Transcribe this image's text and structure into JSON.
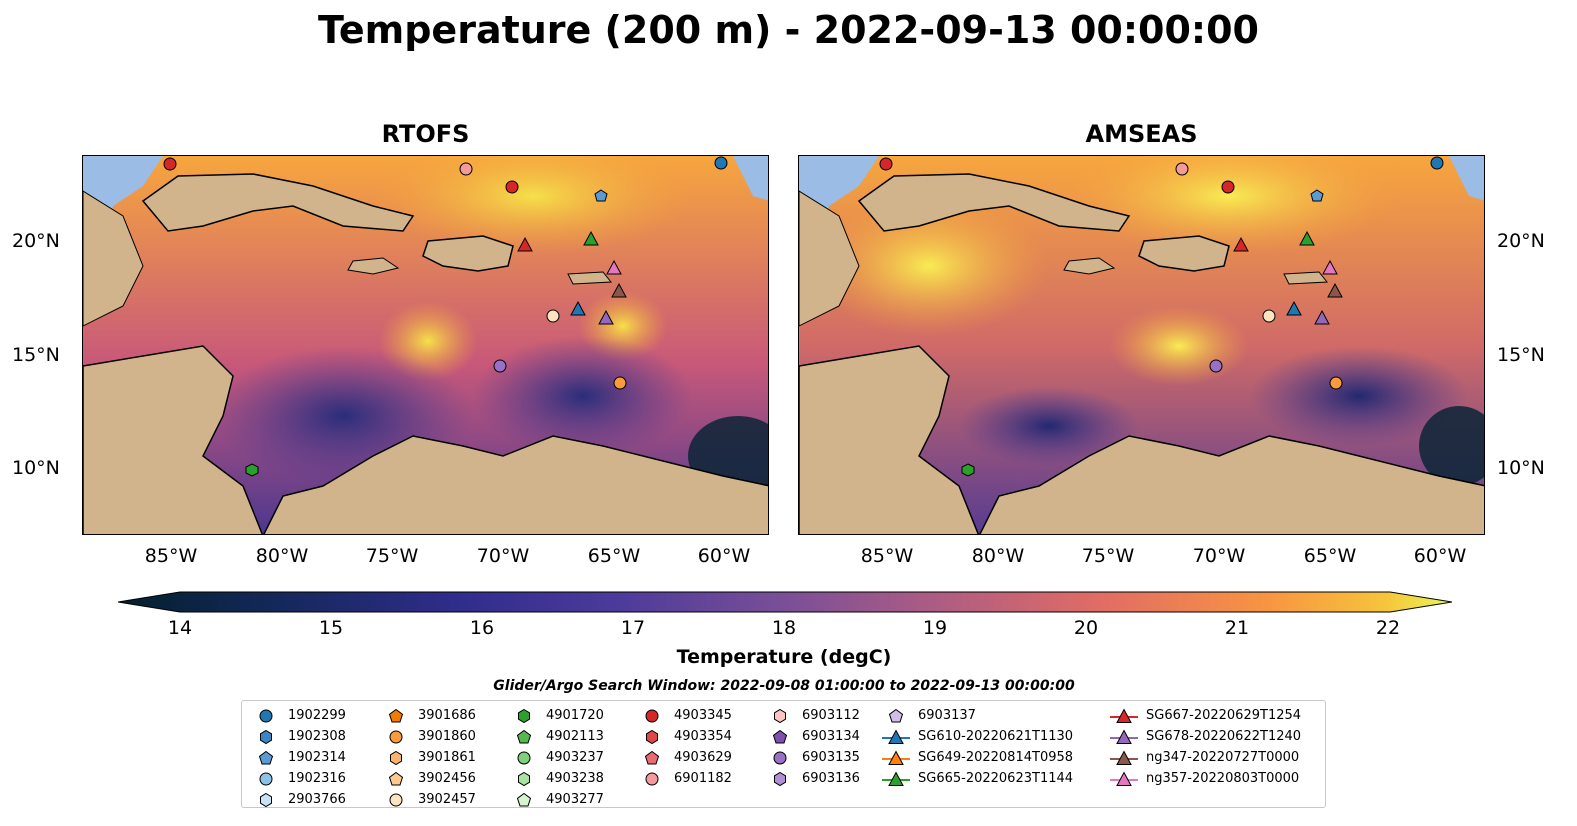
{
  "title": "Temperature (200 m) - 2022-09-13 00:00:00",
  "panels": [
    {
      "title": "RTOFS"
    },
    {
      "title": "AMSEAS"
    }
  ],
  "axes": {
    "x_ticks": [
      "85°W",
      "80°W",
      "75°W",
      "70°W",
      "65°W",
      "60°W"
    ],
    "y_ticks": [
      "20°N",
      "15°N",
      "10°N"
    ]
  },
  "colorbar": {
    "label": "Temperature (degC)",
    "min": 14,
    "max": 22,
    "ticks": [
      "14",
      "15",
      "16",
      "17",
      "18",
      "19",
      "20",
      "21",
      "22"
    ],
    "colormap": "thermal",
    "extend": "both"
  },
  "search_window": "Glider/Argo Search Window: 2022-09-08 01:00:00 to 2022-09-13 00:00:00",
  "legend": {
    "columns": [
      [
        {
          "label": "1902299",
          "marker": "circle",
          "color": "#1f77b4"
        },
        {
          "label": "1902308",
          "marker": "hexagon",
          "color": "#3a85c5"
        },
        {
          "label": "1902314",
          "marker": "pentagon",
          "color": "#5a9bd5"
        },
        {
          "label": "1902316",
          "marker": "circle",
          "color": "#8cc2e8"
        },
        {
          "label": "2903766",
          "marker": "hexagon",
          "color": "#c6e4f5"
        }
      ],
      [
        {
          "label": "3901686",
          "marker": "pentagon",
          "color": "#f07d00"
        },
        {
          "label": "3901860",
          "marker": "circle",
          "color": "#fd9a3c"
        },
        {
          "label": "3901861",
          "marker": "hexagon",
          "color": "#fdb46e"
        },
        {
          "label": "3902456",
          "marker": "pentagon",
          "color": "#fdc98f"
        },
        {
          "label": "3902457",
          "marker": "circle",
          "color": "#fde3c0"
        }
      ],
      [
        {
          "label": "4901720",
          "marker": "hexagon",
          "color": "#2ca02c"
        },
        {
          "label": "4902113",
          "marker": "pentagon",
          "color": "#56b94e"
        },
        {
          "label": "4903237",
          "marker": "circle",
          "color": "#7fd07a"
        },
        {
          "label": "4903238",
          "marker": "hexagon",
          "color": "#a8e3a0"
        },
        {
          "label": "4903277",
          "marker": "pentagon",
          "color": "#d5f5cf"
        }
      ],
      [
        {
          "label": "4903345",
          "marker": "circle",
          "color": "#d62728"
        },
        {
          "label": "4903354",
          "marker": "hexagon",
          "color": "#e04848"
        },
        {
          "label": "4903629",
          "marker": "pentagon",
          "color": "#ea6c70"
        },
        {
          "label": "6901182",
          "marker": "circle",
          "color": "#f49a9a"
        }
      ],
      [
        {
          "label": "6903112",
          "marker": "hexagon",
          "color": "#fcc5c5"
        },
        {
          "label": "6903134",
          "marker": "pentagon",
          "color": "#7f4fb0"
        },
        {
          "label": "6903135",
          "marker": "circle",
          "color": "#9a70c6"
        },
        {
          "label": "6903136",
          "marker": "hexagon",
          "color": "#b08fd6"
        }
      ],
      [
        {
          "label": "6903137",
          "marker": "pentagon",
          "color": "#d2bcec"
        },
        {
          "label": "SG610-20220621T1130",
          "marker": "triangle",
          "color": "#1f77b4",
          "line": true
        },
        {
          "label": "SG649-20220814T0958",
          "marker": "triangle",
          "color": "#ff7f0e",
          "line": true
        },
        {
          "label": "SG665-20220623T1144",
          "marker": "triangle",
          "color": "#2ca02c",
          "line": true
        }
      ],
      [
        {
          "label": "SG667-20220629T1254",
          "marker": "triangle",
          "color": "#d62728",
          "line": true
        },
        {
          "label": "SG678-20220622T1240",
          "marker": "triangle",
          "color": "#9467bd",
          "line": true
        },
        {
          "label": "ng347-20220727T0000",
          "marker": "triangle",
          "color": "#8c564b",
          "line": true
        },
        {
          "label": "ng357-20220803T0000",
          "marker": "triangle",
          "color": "#e377c2",
          "line": true
        }
      ]
    ]
  },
  "colors": {
    "land": "#d2b48c",
    "shallow_water": "#9bbde5",
    "deep_water_dark": "#05202e"
  }
}
